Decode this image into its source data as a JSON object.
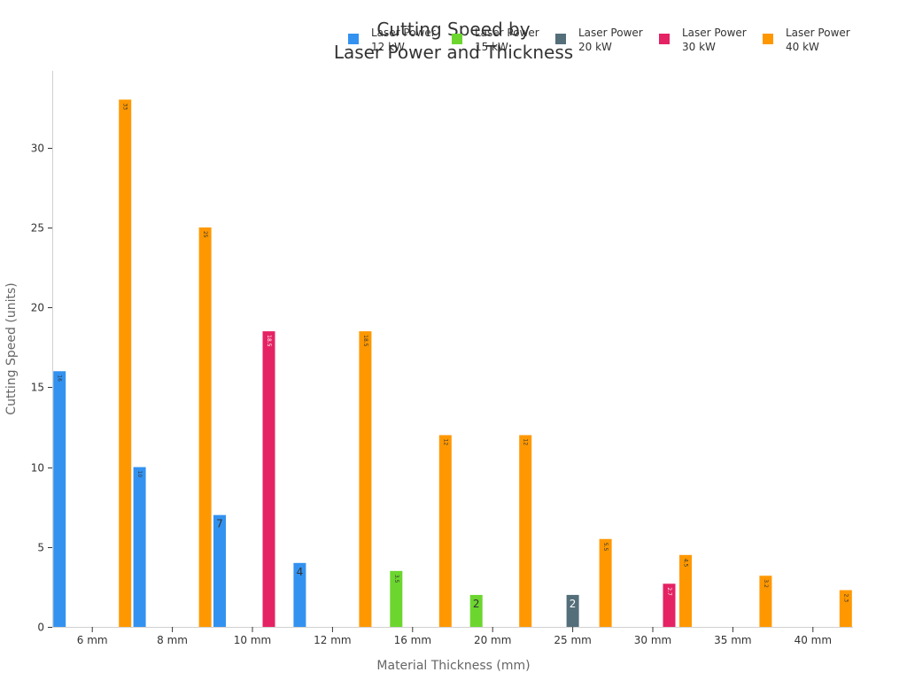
{
  "chart_data": {
    "type": "bar",
    "title": [
      "Cutting Speed by",
      "Laser Power and Thickness"
    ],
    "xlabel": "Material Thickness (mm)",
    "ylabel": "Cutting Speed (units)",
    "ylim": [
      0,
      34.8
    ],
    "yticks": [
      0,
      5,
      10,
      15,
      20,
      25,
      30
    ],
    "grid": false,
    "legend_position": "top-right",
    "categories": [
      "6 mm",
      "8 mm",
      "10 mm",
      "12 mm",
      "16 mm",
      "20 mm",
      "25 mm",
      "30 mm",
      "35 mm",
      "40 mm"
    ],
    "series": [
      {
        "name": [
          "Laser Power",
          "12 kW"
        ],
        "color": "#3392f0",
        "values": [
          16,
          10,
          7,
          4,
          null,
          null,
          null,
          null,
          null,
          null
        ],
        "labels": [
          "16",
          "10",
          "7",
          "4",
          "",
          "",
          "",
          "",
          "",
          ""
        ]
      },
      {
        "name": [
          "Laser Power",
          "15 kW"
        ],
        "color": "#6cd62f",
        "values": [
          null,
          null,
          null,
          null,
          3.5,
          2,
          null,
          null,
          null,
          null
        ],
        "labels": [
          "",
          "",
          "",
          "",
          "3.5",
          "2",
          "",
          "",
          "",
          ""
        ]
      },
      {
        "name": [
          "Laser Power",
          "20 kW"
        ],
        "color": "#546e7a",
        "values": [
          null,
          null,
          null,
          null,
          null,
          null,
          2,
          null,
          null,
          null
        ],
        "labels": [
          "",
          "",
          "",
          "",
          "",
          "",
          "2",
          "",
          "",
          ""
        ]
      },
      {
        "name": [
          "Laser Power",
          "30 kW"
        ],
        "color": "#e52264",
        "values": [
          null,
          null,
          18.5,
          null,
          null,
          null,
          null,
          2.7,
          null,
          null
        ],
        "labels": [
          "",
          "",
          "18.5",
          "",
          "",
          "",
          "",
          "2.7",
          "",
          ""
        ]
      },
      {
        "name": [
          "Laser Power",
          "40 kW"
        ],
        "color": "#ff9800",
        "values": [
          33,
          25,
          null,
          18.5,
          12,
          12,
          5.5,
          4.5,
          3.2,
          2.3
        ],
        "labels": [
          "33",
          "25",
          "",
          "18.5",
          "12",
          "12",
          "5.5",
          "4.5",
          "3.2",
          "2.3"
        ]
      }
    ]
  }
}
